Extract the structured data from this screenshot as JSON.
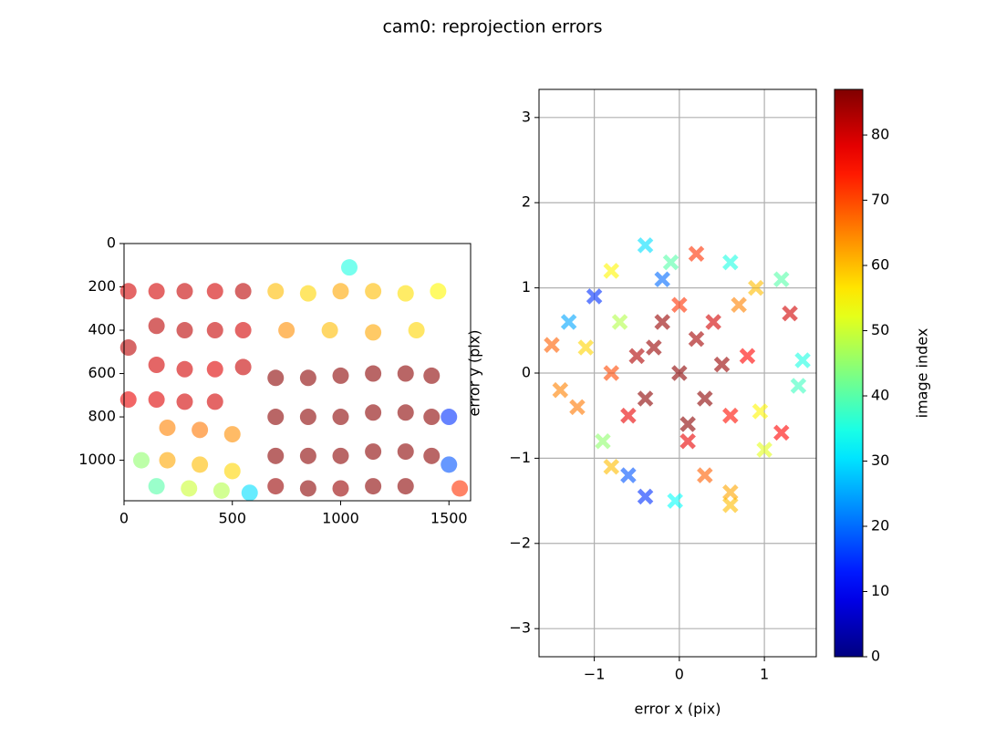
{
  "title": "cam0: reprojection errors",
  "chart_data": [
    {
      "type": "scatter",
      "marker": "o",
      "grid": false,
      "xlim": [
        0,
        1600
      ],
      "ylim": [
        1187,
        0
      ],
      "xticks": [
        0,
        500,
        1000,
        1500
      ],
      "yticks": [
        0,
        200,
        400,
        600,
        800,
        1000
      ],
      "x": [
        20,
        20,
        20,
        150,
        150,
        150,
        150,
        280,
        280,
        280,
        280,
        420,
        420,
        420,
        420,
        550,
        550,
        550,
        700,
        700,
        700,
        700,
        850,
        850,
        850,
        850,
        1000,
        1000,
        1000,
        1000,
        1150,
        1150,
        1150,
        1150,
        1300,
        1300,
        1300,
        1300,
        1420,
        1420,
        1420,
        700,
        850,
        1000,
        1150,
        1300,
        1450,
        750,
        950,
        1150,
        1350,
        200,
        200,
        350,
        350,
        500,
        500,
        80,
        150,
        300,
        450,
        580,
        1040,
        1500,
        1500,
        1550
      ],
      "values": [
        220,
        480,
        720,
        220,
        380,
        560,
        720,
        220,
        400,
        580,
        730,
        220,
        400,
        580,
        730,
        220,
        400,
        570,
        620,
        800,
        980,
        1120,
        620,
        800,
        980,
        1130,
        610,
        800,
        980,
        1130,
        600,
        780,
        960,
        1120,
        600,
        780,
        960,
        1120,
        610,
        800,
        980,
        220,
        230,
        220,
        220,
        230,
        220,
        400,
        400,
        410,
        400,
        850,
        1000,
        860,
        1020,
        880,
        1050,
        1000,
        1120,
        1130,
        1140,
        1150,
        110,
        800,
        1020,
        1130
      ],
      "image_index": [
        80,
        82,
        78,
        80,
        82,
        80,
        79,
        81,
        82,
        80,
        80,
        80,
        81,
        79,
        80,
        82,
        80,
        81,
        86,
        86,
        86,
        85,
        86,
        86,
        86,
        86,
        86,
        86,
        86,
        85,
        86,
        86,
        86,
        86,
        86,
        86,
        86,
        86,
        86,
        86,
        86,
        60,
        58,
        62,
        60,
        57,
        55,
        64,
        60,
        62,
        58,
        65,
        62,
        66,
        60,
        64,
        58,
        45,
        40,
        50,
        48,
        30,
        35,
        15,
        18,
        72
      ]
    },
    {
      "type": "scatter",
      "marker": "x",
      "grid": true,
      "xlabel": "error x (pix)",
      "ylabel": "error y (pix)",
      "xlim": [
        -1.65,
        1.61
      ],
      "ylim": [
        -3.33,
        3.33
      ],
      "xticks": [
        {
          "value": -1,
          "label": "−1"
        },
        0,
        1
      ],
      "yticks": [
        {
          "value": -3,
          "label": "−3"
        },
        {
          "value": -2,
          "label": "−2"
        },
        {
          "value": -1,
          "label": "−1"
        },
        0,
        1,
        2,
        3
      ],
      "x": [
        -1.5,
        -1.4,
        -1.3,
        -1.0,
        -0.8,
        -0.4,
        -0.2,
        0.2,
        0.6,
        0.9,
        1.2,
        1.3,
        1.45,
        1.4,
        1.2,
        1.0,
        0.6,
        0.6,
        0.3,
        -0.05,
        -0.4,
        -0.6,
        -0.8,
        -0.9,
        -1.2,
        0.95,
        -0.7,
        0.7,
        -0.1,
        -1.1,
        0,
        -0.3,
        0.3,
        0.2,
        -0.4,
        0.5,
        -0.5,
        0.1,
        -0.2,
        0.4,
        -0.6,
        0.6,
        0,
        -0.8,
        0.8,
        0.1
      ],
      "values": [
        0.33,
        -0.2,
        0.6,
        0.9,
        1.2,
        1.5,
        1.1,
        1.4,
        1.3,
        1.0,
        1.1,
        0.7,
        0.15,
        -0.15,
        -0.7,
        -0.9,
        -1.4,
        -1.55,
        -1.2,
        -1.5,
        -1.45,
        -1.2,
        -1.1,
        -0.8,
        -0.4,
        -0.45,
        0.6,
        0.8,
        1.3,
        0.3,
        0,
        0.3,
        -0.3,
        0.4,
        -0.3,
        0.1,
        0.2,
        -0.6,
        0.6,
        0.6,
        -0.5,
        -0.5,
        0.8,
        0,
        0.2,
        -0.8
      ],
      "image_index": [
        68,
        65,
        25,
        15,
        55,
        30,
        20,
        72,
        35,
        60,
        40,
        80,
        35,
        38,
        76,
        52,
        62,
        60,
        68,
        33,
        15,
        18,
        60,
        45,
        66,
        55,
        48,
        65,
        40,
        58,
        86,
        85,
        86,
        84,
        86,
        85,
        83,
        86,
        85,
        80,
        78,
        75,
        72,
        70,
        76,
        78
      ],
      "colorbar": {
        "label": "image index",
        "clim": [
          0,
          87
        ],
        "ticks": [
          0,
          10,
          20,
          30,
          40,
          50,
          60,
          70,
          80
        ],
        "colormap": "jet"
      }
    }
  ]
}
